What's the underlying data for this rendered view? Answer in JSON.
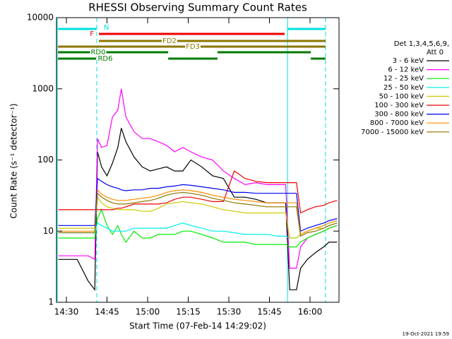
{
  "chart_data": {
    "type": "line",
    "title": "RHESSI Observing Summary Count Rates",
    "x_label": "Start Time (07-Feb-14 14:29:02)",
    "y_label": "Count Rate (s⁻¹ detector⁻¹)",
    "footer": "19-Oct-2021 19:59",
    "legend_title": [
      "Det 1,3,4,5,6,9,",
      "Att 0"
    ],
    "log_y": true,
    "xlim": [
      -3.65,
      100.7
    ],
    "ylim": [
      1,
      10000
    ],
    "xticks": [
      {
        "value": 0,
        "label": "14:30"
      },
      {
        "value": 15,
        "label": "14:45"
      },
      {
        "value": 30,
        "label": "15:00"
      },
      {
        "value": 45,
        "label": "15:15"
      },
      {
        "value": 60,
        "label": "15:30"
      },
      {
        "value": 75,
        "label": "15:45"
      },
      {
        "value": 90,
        "label": "16:00"
      }
    ],
    "yticks": [
      1,
      10,
      100,
      1000,
      10000
    ],
    "x": [
      -3,
      0,
      4,
      8,
      10.5,
      11.5,
      13,
      15,
      17,
      19,
      20.3,
      22,
      25,
      28,
      31,
      34,
      37,
      40,
      43,
      46,
      50,
      54,
      58,
      62,
      66,
      70,
      74,
      78,
      81,
      82.5,
      85,
      86.5,
      89,
      92,
      95,
      97,
      100
    ],
    "series": [
      {
        "name": "3 - 6 keV",
        "color": "#000000",
        "values": [
          4,
          4,
          4,
          2,
          1.5,
          130,
          80,
          60,
          90,
          150,
          280,
          180,
          110,
          80,
          70,
          75,
          80,
          70,
          70,
          100,
          80,
          60,
          55,
          30,
          30,
          28,
          25,
          25,
          25,
          1.5,
          1.5,
          3,
          4,
          5,
          6,
          7,
          7
        ]
      },
      {
        "name": "6 - 12 keV",
        "color": "#ff00ff",
        "values": [
          4.5,
          4.5,
          4.5,
          4.5,
          4,
          200,
          150,
          160,
          400,
          500,
          1000,
          400,
          250,
          200,
          200,
          180,
          160,
          130,
          150,
          130,
          110,
          100,
          70,
          55,
          45,
          48,
          45,
          45,
          45,
          3,
          3,
          6,
          8,
          9,
          10,
          11,
          12
        ]
      },
      {
        "name": "12 - 25 keV",
        "color": "#00ee00",
        "values": [
          8,
          8,
          8,
          8,
          8,
          15,
          20,
          12,
          9,
          12,
          9,
          7,
          10,
          8,
          8,
          9,
          9,
          9,
          10,
          10,
          9,
          8,
          7,
          7,
          7,
          6.5,
          6.5,
          6.5,
          6.5,
          6,
          6,
          7,
          8,
          9,
          10,
          11,
          12
        ]
      },
      {
        "name": "25 - 50 keV",
        "color": "#00eeee",
        "values": [
          9.5,
          9.5,
          9.5,
          9.5,
          9.5,
          13,
          12,
          11,
          10,
          10,
          10,
          10,
          11,
          11,
          11,
          11,
          11,
          12,
          13,
          12,
          11,
          10,
          10,
          9.5,
          9,
          9,
          9,
          8.5,
          8.5,
          8,
          8,
          9,
          10,
          11,
          12,
          13,
          14
        ]
      },
      {
        "name": "50 - 100 keV",
        "color": "#cccc00",
        "values": [
          11,
          11,
          11,
          11,
          11,
          30,
          25,
          22,
          21,
          20,
          20,
          20,
          20,
          19,
          19,
          21,
          24,
          25,
          26,
          25,
          24,
          22,
          20,
          19,
          18,
          18,
          18,
          18,
          18,
          8,
          8,
          9,
          10,
          11,
          11,
          12,
          13
        ]
      },
      {
        "name": "100 - 300 keV",
        "color": "#ee0000",
        "values": [
          20,
          20,
          20,
          20,
          20,
          20,
          20,
          20,
          20,
          21,
          21,
          22,
          24,
          24,
          24,
          24,
          25,
          28,
          30,
          30,
          28,
          26,
          26,
          70,
          55,
          50,
          48,
          48,
          48,
          48,
          48,
          18,
          20,
          22,
          23,
          25,
          27
        ]
      },
      {
        "name": "300 - 800 keV",
        "color": "#0000ee",
        "values": [
          12,
          12,
          12,
          12,
          12,
          55,
          50,
          45,
          42,
          40,
          38,
          37,
          38,
          38,
          40,
          40,
          42,
          43,
          45,
          44,
          42,
          40,
          38,
          35,
          35,
          34,
          34,
          34,
          34,
          34,
          34,
          10,
          11,
          12,
          13,
          14,
          15
        ]
      },
      {
        "name": "800 - 7000 keV",
        "color": "#ff8c00",
        "values": [
          10,
          10,
          10,
          10,
          10,
          38,
          33,
          30,
          28,
          27,
          27,
          27,
          28,
          29,
          30,
          32,
          35,
          37,
          38,
          37,
          35,
          32,
          30,
          28,
          27,
          26,
          25,
          25,
          25,
          25,
          25,
          9,
          10,
          11,
          12,
          13,
          14
        ]
      },
      {
        "name": "7000 - 15000 keV",
        "color": "#8b7500",
        "values": [
          9.5,
          9.5,
          9.5,
          9.5,
          9.5,
          34,
          30,
          27,
          25,
          24,
          24,
          24,
          25,
          26,
          27,
          29,
          32,
          34,
          35,
          34,
          32,
          29,
          27,
          25,
          24,
          23,
          22,
          22,
          22,
          22,
          22,
          8.5,
          9.5,
          10,
          11,
          12,
          13
        ]
      }
    ],
    "flags": [
      {
        "label": "N",
        "color": "#00e0e0",
        "segments": [
          [
            -3.1,
            11.2
          ],
          [
            81.7,
            95.7
          ]
        ]
      },
      {
        "label": "F",
        "color": "#ee0000",
        "segments": [
          [
            12,
            80.6
          ]
        ]
      },
      {
        "label": "FD2",
        "color": "#8b7500",
        "segments": [
          [
            12,
            95.7
          ]
        ]
      },
      {
        "label": "FD3",
        "color": "#8b7500",
        "segments": [
          [
            -3.1,
            95.7
          ]
        ]
      },
      {
        "label": "RD0",
        "color": "#007a00",
        "segments": [
          [
            -3.1,
            37.6
          ],
          [
            55.8,
            90.3
          ]
        ]
      },
      {
        "label": "RD6",
        "color": "#007a00",
        "segments": [
          [
            -3.1,
            11
          ],
          [
            37.6,
            55.8
          ],
          [
            90.3,
            95.7
          ]
        ]
      }
    ],
    "night_color": "#00e0e0",
    "night_solid": [
      81.7
    ],
    "night_dashed": [
      11.2,
      95.7
    ]
  }
}
